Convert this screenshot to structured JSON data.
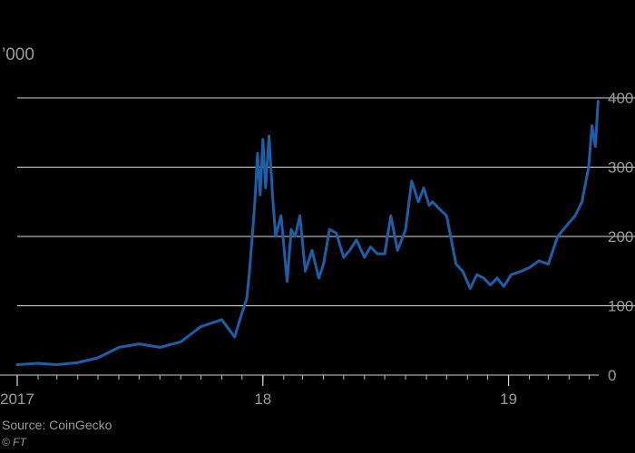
{
  "chart_data": {
    "type": "line",
    "title": "",
    "unit_label": "’000",
    "xlabel": "",
    "ylabel": "",
    "x_ticks": [
      {
        "label": "2017",
        "x": "2017-01-01"
      },
      {
        "label": "18",
        "x": "2018-01-01"
      },
      {
        "label": "19",
        "x": "2019-01-01"
      }
    ],
    "y_ticks": [
      "0",
      "100",
      "200",
      "300",
      "400"
    ],
    "ylim": [
      0,
      400
    ],
    "xlim": [
      "2017-01-01",
      "2019-05-15"
    ],
    "grid": true,
    "line_color": "#1d5ea8",
    "x": [
      "2017-01-01",
      "2017-02-01",
      "2017-03-01",
      "2017-04-01",
      "2017-05-01",
      "2017-06-01",
      "2017-07-01",
      "2017-08-01",
      "2017-09-01",
      "2017-10-01",
      "2017-11-01",
      "2017-11-20",
      "2017-12-01",
      "2017-12-08",
      "2017-12-12",
      "2017-12-17",
      "2017-12-20",
      "2017-12-24",
      "2017-12-28",
      "2018-01-01",
      "2018-01-05",
      "2018-01-10",
      "2018-01-16",
      "2018-01-20",
      "2018-01-28",
      "2018-02-06",
      "2018-02-12",
      "2018-02-18",
      "2018-02-25",
      "2018-03-05",
      "2018-03-15",
      "2018-03-25",
      "2018-04-01",
      "2018-04-10",
      "2018-04-20",
      "2018-05-01",
      "2018-05-10",
      "2018-05-20",
      "2018-06-01",
      "2018-06-10",
      "2018-06-20",
      "2018-07-01",
      "2018-07-10",
      "2018-07-20",
      "2018-08-01",
      "2018-08-10",
      "2018-08-20",
      "2018-08-28",
      "2018-09-05",
      "2018-09-10",
      "2018-09-20",
      "2018-10-01",
      "2018-10-15",
      "2018-10-25",
      "2018-11-05",
      "2018-11-15",
      "2018-11-25",
      "2018-12-05",
      "2018-12-15",
      "2018-12-25",
      "2019-01-05",
      "2019-01-20",
      "2019-02-01",
      "2019-02-15",
      "2019-03-01",
      "2019-03-15",
      "2019-04-01",
      "2019-04-10",
      "2019-04-20",
      "2019-04-30",
      "2019-05-05",
      "2019-05-10",
      "2019-05-14"
    ],
    "series": [
      {
        "values": [
          15,
          17,
          15,
          18,
          25,
          40,
          45,
          40,
          48,
          70,
          80,
          55,
          90,
          110,
          150,
          210,
          250,
          320,
          260,
          340,
          270,
          345,
          250,
          200,
          230,
          135,
          210,
          200,
          230,
          150,
          180,
          140,
          160,
          210,
          205,
          170,
          180,
          195,
          170,
          185,
          175,
          175,
          230,
          180,
          210,
          280,
          250,
          270,
          245,
          250,
          240,
          230,
          160,
          150,
          125,
          145,
          140,
          130,
          140,
          128,
          145,
          150,
          155,
          165,
          160,
          200,
          220,
          230,
          250,
          300,
          360,
          330,
          395
        ]
      }
    ]
  },
  "footer": {
    "source": "Source: CoinGecko",
    "credit": "© FT"
  }
}
